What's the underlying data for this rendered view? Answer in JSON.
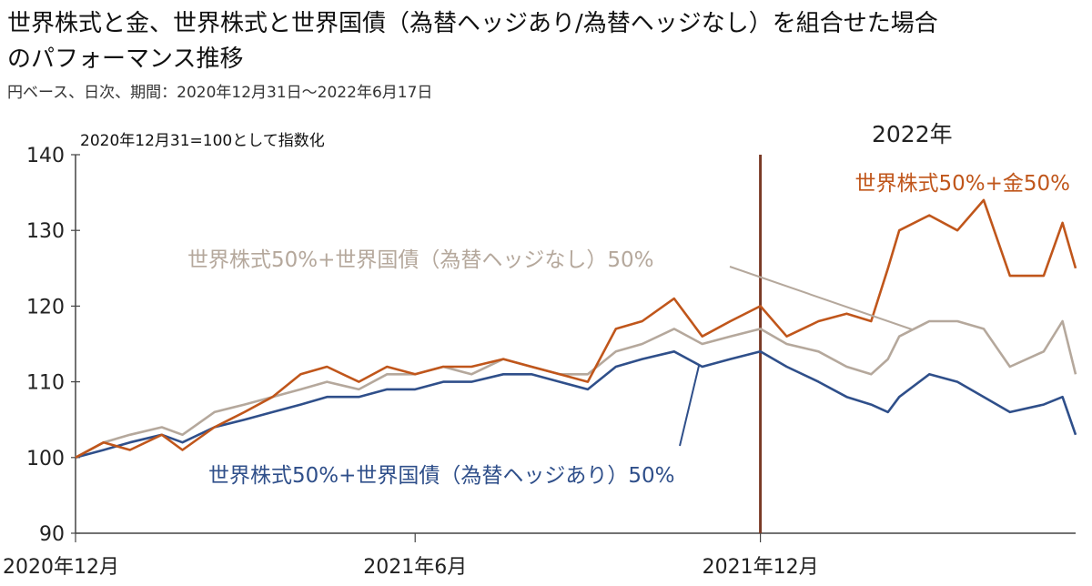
{
  "chart_data": {
    "type": "line",
    "title_line1": "世界株式と金、世界株式と世界国債（為替ヘッジあり/為替ヘッジなし）を組合せた場合",
    "title_line2": "のパフォーマンス推移",
    "subtitle": "円ベース、日次、期間：2020年12月31日～2022年6月17日",
    "index_note": "2020年12月31=100として指数化",
    "marker_label": "2022年",
    "ylim": [
      90,
      140
    ],
    "yticks": [
      "140",
      "130",
      "120",
      "110",
      "100",
      "90"
    ],
    "xtick_labels": [
      "2020年12月",
      "2021年6月",
      "2021年12月"
    ],
    "grid": false,
    "series": [
      {
        "name": "世界株式50%+金50%",
        "color": "#c0561b",
        "x": [
          "2020-12-31",
          "2021-01-15",
          "2021-01-29",
          "2021-02-15",
          "2021-02-26",
          "2021-03-15",
          "2021-03-31",
          "2021-04-15",
          "2021-04-30",
          "2021-05-14",
          "2021-05-31",
          "2021-06-15",
          "2021-06-30",
          "2021-07-15",
          "2021-07-30",
          "2021-08-16",
          "2021-08-31",
          "2021-09-15",
          "2021-09-30",
          "2021-10-15",
          "2021-10-29",
          "2021-11-15",
          "2021-11-30",
          "2021-12-15",
          "2021-12-31",
          "2022-01-14",
          "2022-01-31",
          "2022-02-15",
          "2022-02-28",
          "2022-03-09",
          "2022-03-15",
          "2022-03-31",
          "2022-04-15",
          "2022-04-29",
          "2022-05-13",
          "2022-05-31",
          "2022-06-10",
          "2022-06-17"
        ],
        "values": [
          100,
          102,
          101,
          103,
          101,
          104,
          106,
          108,
          111,
          112,
          110,
          112,
          111,
          112,
          112,
          113,
          112,
          111,
          110,
          117,
          118,
          121,
          116,
          118,
          120,
          116,
          118,
          119,
          118,
          125,
          130,
          132,
          130,
          134,
          124,
          124,
          131,
          125
        ]
      },
      {
        "name": "世界株式50%+世界国債（為替ヘッジなし）50%",
        "color": "#b5a89c",
        "x": [
          "2020-12-31",
          "2021-01-15",
          "2021-01-29",
          "2021-02-15",
          "2021-02-26",
          "2021-03-15",
          "2021-03-31",
          "2021-04-15",
          "2021-04-30",
          "2021-05-14",
          "2021-05-31",
          "2021-06-15",
          "2021-06-30",
          "2021-07-15",
          "2021-07-30",
          "2021-08-16",
          "2021-08-31",
          "2021-09-15",
          "2021-09-30",
          "2021-10-15",
          "2021-10-29",
          "2021-11-15",
          "2021-11-30",
          "2021-12-15",
          "2021-12-31",
          "2022-01-14",
          "2022-01-31",
          "2022-02-15",
          "2022-02-28",
          "2022-03-09",
          "2022-03-15",
          "2022-03-31",
          "2022-04-15",
          "2022-04-29",
          "2022-05-13",
          "2022-05-31",
          "2022-06-10",
          "2022-06-17"
        ],
        "values": [
          100,
          102,
          103,
          104,
          103,
          106,
          107,
          108,
          109,
          110,
          109,
          111,
          111,
          112,
          111,
          113,
          112,
          111,
          111,
          114,
          115,
          117,
          115,
          116,
          117,
          115,
          114,
          112,
          111,
          113,
          116,
          118,
          118,
          117,
          112,
          114,
          118,
          111
        ]
      },
      {
        "name": "世界株式50%+世界国債（為替ヘッジあり）50%",
        "color": "#2f4f8a",
        "x": [
          "2020-12-31",
          "2021-01-15",
          "2021-01-29",
          "2021-02-15",
          "2021-02-26",
          "2021-03-15",
          "2021-03-31",
          "2021-04-15",
          "2021-04-30",
          "2021-05-14",
          "2021-05-31",
          "2021-06-15",
          "2021-06-30",
          "2021-07-15",
          "2021-07-30",
          "2021-08-16",
          "2021-08-31",
          "2021-09-15",
          "2021-09-30",
          "2021-10-15",
          "2021-10-29",
          "2021-11-15",
          "2021-11-30",
          "2021-12-15",
          "2021-12-31",
          "2022-01-14",
          "2022-01-31",
          "2022-02-15",
          "2022-02-28",
          "2022-03-09",
          "2022-03-15",
          "2022-03-31",
          "2022-04-15",
          "2022-04-29",
          "2022-05-13",
          "2022-05-31",
          "2022-06-10",
          "2022-06-17"
        ],
        "values": [
          100,
          101,
          102,
          103,
          102,
          104,
          105,
          106,
          107,
          108,
          108,
          109,
          109,
          110,
          110,
          111,
          111,
          110,
          109,
          112,
          113,
          114,
          112,
          113,
          114,
          112,
          110,
          108,
          107,
          106,
          108,
          111,
          110,
          108,
          106,
          107,
          108,
          103
        ]
      }
    ]
  }
}
